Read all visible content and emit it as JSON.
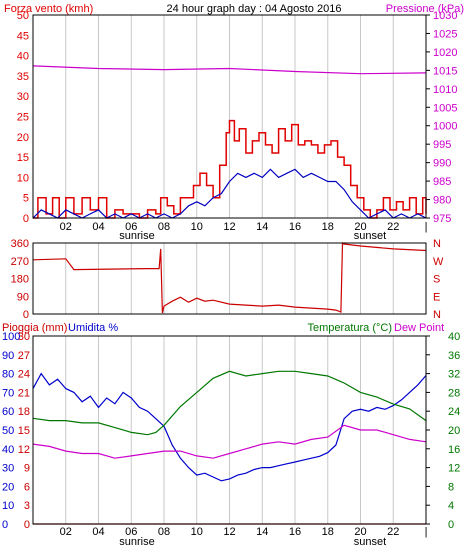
{
  "colors": {
    "wind": "#e00000",
    "wind_max": "#e00000",
    "wind_avg": "#0000c0",
    "pressure": "#cc00cc",
    "direction": "#cc0000",
    "rain": "#cc0000",
    "humidity": "#0000cc",
    "temperature": "#007700",
    "dewpoint": "#cc00cc",
    "grid": "#c8c8c8",
    "frame": "#000000"
  },
  "top": {
    "left_title": "Forza vento (kmh)",
    "center_title": "24 hour graph day : 04 Agosto 2016",
    "right_title": "Pressione (kPa)"
  },
  "bottom": {
    "left_title_a": "Pioggia (mm)",
    "left_title_b": "Umidita %",
    "right_title_a": "Temperatura (°C)",
    "right_title_b": "Dew Point"
  },
  "direction_labels": [
    "N",
    "W",
    "S",
    "E",
    "N"
  ],
  "x_ticks": [
    "02",
    "04",
    "06",
    "08",
    "10",
    "12",
    "14",
    "16",
    "18",
    "20",
    "22",
    "|"
  ],
  "sunrise_label": "sunrise",
  "sunset_label": "sunset",
  "chart_data": [
    {
      "type": "line",
      "name": "wind-pressure",
      "x_range_hours": [
        0,
        24
      ],
      "ylim_left": [
        0,
        50
      ],
      "yticks_left": [
        0,
        5,
        10,
        15,
        20,
        25,
        30,
        35,
        40,
        45,
        50
      ],
      "ylim_right": [
        975,
        1030
      ],
      "yticks_right": [
        975,
        980,
        985,
        990,
        995,
        1000,
        1005,
        1010,
        1015,
        1020,
        1025,
        1030
      ],
      "series": [
        {
          "key": "gust",
          "axis": "left",
          "points": [
            [
              0,
              0
            ],
            [
              0.3,
              5
            ],
            [
              0.8,
              1
            ],
            [
              1.2,
              5
            ],
            [
              1.6,
              0
            ],
            [
              2,
              5
            ],
            [
              2.5,
              1
            ],
            [
              3,
              5
            ],
            [
              3.5,
              2
            ],
            [
              4,
              5
            ],
            [
              4.5,
              0
            ],
            [
              5,
              2
            ],
            [
              5.5,
              1
            ],
            [
              6,
              1
            ],
            [
              6.5,
              0
            ],
            [
              7,
              2
            ],
            [
              7.5,
              1
            ],
            [
              7.8,
              5
            ],
            [
              8.2,
              3
            ],
            [
              8.6,
              1
            ],
            [
              9,
              5
            ],
            [
              9.4,
              5
            ],
            [
              9.8,
              8
            ],
            [
              10.2,
              11
            ],
            [
              10.6,
              8
            ],
            [
              11,
              5
            ],
            [
              11.4,
              13
            ],
            [
              11.8,
              21
            ],
            [
              12,
              24
            ],
            [
              12.3,
              19
            ],
            [
              12.6,
              22
            ],
            [
              13,
              16
            ],
            [
              13.4,
              19
            ],
            [
              13.8,
              21
            ],
            [
              14.2,
              18
            ],
            [
              14.6,
              16
            ],
            [
              15,
              22
            ],
            [
              15.4,
              19
            ],
            [
              15.8,
              23
            ],
            [
              16.2,
              18
            ],
            [
              16.6,
              19
            ],
            [
              17,
              18
            ],
            [
              17.4,
              16
            ],
            [
              17.8,
              18
            ],
            [
              18.2,
              19
            ],
            [
              18.6,
              15
            ],
            [
              19,
              13
            ],
            [
              19.4,
              8
            ],
            [
              19.8,
              5
            ],
            [
              20.2,
              2
            ],
            [
              20.6,
              0
            ],
            [
              21,
              2
            ],
            [
              21.4,
              5
            ],
            [
              21.8,
              2
            ],
            [
              22.2,
              4
            ],
            [
              22.6,
              2
            ],
            [
              23,
              5
            ],
            [
              23.4,
              1
            ],
            [
              23.8,
              5
            ],
            [
              24,
              1
            ]
          ]
        },
        {
          "key": "average",
          "axis": "left",
          "points": [
            [
              0,
              0
            ],
            [
              0.5,
              2
            ],
            [
              1,
              1
            ],
            [
              1.5,
              0
            ],
            [
              2,
              2
            ],
            [
              2.5,
              1
            ],
            [
              3,
              0
            ],
            [
              3.5,
              1
            ],
            [
              4,
              2
            ],
            [
              4.5,
              0
            ],
            [
              5,
              1
            ],
            [
              5.5,
              0
            ],
            [
              6,
              1
            ],
            [
              6.5,
              0
            ],
            [
              7,
              1
            ],
            [
              7.5,
              0
            ],
            [
              8,
              1
            ],
            [
              8.5,
              0
            ],
            [
              9,
              1
            ],
            [
              9.5,
              3
            ],
            [
              10,
              4
            ],
            [
              10.5,
              3
            ],
            [
              11,
              5
            ],
            [
              11.5,
              6
            ],
            [
              12,
              9
            ],
            [
              12.5,
              11
            ],
            [
              13,
              10
            ],
            [
              13.5,
              11
            ],
            [
              14,
              10
            ],
            [
              14.5,
              12
            ],
            [
              15,
              10
            ],
            [
              15.5,
              11
            ],
            [
              16,
              12
            ],
            [
              16.5,
              10
            ],
            [
              17,
              11
            ],
            [
              17.5,
              10
            ],
            [
              18,
              9
            ],
            [
              18.5,
              9
            ],
            [
              19,
              7
            ],
            [
              19.5,
              4
            ],
            [
              20,
              2
            ],
            [
              20.5,
              0
            ],
            [
              21,
              1
            ],
            [
              21.5,
              2
            ],
            [
              22,
              0
            ],
            [
              22.5,
              1
            ],
            [
              23,
              0
            ],
            [
              23.5,
              1
            ],
            [
              24,
              0
            ]
          ]
        },
        {
          "key": "pressure",
          "axis": "right",
          "points": [
            [
              0,
              1016.2
            ],
            [
              4,
              1015.5
            ],
            [
              8,
              1015.2
            ],
            [
              12,
              1015.5
            ],
            [
              16,
              1014.7
            ],
            [
              20,
              1014.1
            ],
            [
              24,
              1014.3
            ]
          ]
        }
      ]
    },
    {
      "type": "line",
      "name": "wind-direction",
      "x_range_hours": [
        0,
        24
      ],
      "ylim": [
        0,
        360
      ],
      "yticks": [
        0,
        90,
        180,
        270,
        360
      ],
      "series": [
        {
          "key": "direction",
          "points": [
            [
              0,
              275
            ],
            [
              2,
              280
            ],
            [
              2.5,
              225
            ],
            [
              7,
              230
            ],
            [
              7.7,
              230
            ],
            [
              7.8,
              330
            ],
            [
              7.9,
              5
            ],
            [
              8,
              40
            ],
            [
              8.5,
              65
            ],
            [
              9,
              85
            ],
            [
              9.5,
              60
            ],
            [
              10,
              80
            ],
            [
              10.5,
              65
            ],
            [
              11,
              70
            ],
            [
              12,
              50
            ],
            [
              13,
              45
            ],
            [
              14,
              40
            ],
            [
              15,
              45
            ],
            [
              16,
              35
            ],
            [
              17,
              30
            ],
            [
              18,
              25
            ],
            [
              18.5,
              20
            ],
            [
              18.8,
              10
            ],
            [
              18.9,
              360
            ],
            [
              19,
              355
            ],
            [
              20,
              345
            ],
            [
              22,
              330
            ],
            [
              24,
              322
            ]
          ]
        }
      ]
    },
    {
      "type": "line",
      "name": "rain-humidity-temperature",
      "x_range_hours": [
        0,
        24
      ],
      "ylim_left_rain": [
        0,
        30
      ],
      "yticks_left_rain": [
        0,
        3,
        6,
        9,
        12,
        15,
        18,
        21,
        24,
        27,
        30
      ],
      "ylim_left_humidity": [
        0,
        100
      ],
      "yticks_left_humidity": [
        0,
        10,
        20,
        30,
        40,
        50,
        60,
        70,
        80,
        90,
        100
      ],
      "ylim_right": [
        0,
        40
      ],
      "yticks_right": [
        0,
        4,
        8,
        12,
        16,
        20,
        24,
        28,
        32,
        36,
        40
      ],
      "series": [
        {
          "key": "rain",
          "points": [
            [
              0,
              0
            ],
            [
              24,
              0
            ]
          ]
        },
        {
          "key": "humidity",
          "points": [
            [
              0,
              72
            ],
            [
              0.5,
              80
            ],
            [
              1,
              74
            ],
            [
              1.5,
              77
            ],
            [
              2,
              72
            ],
            [
              2.5,
              70
            ],
            [
              3,
              65
            ],
            [
              3.5,
              68
            ],
            [
              4,
              62
            ],
            [
              4.5,
              67
            ],
            [
              5,
              64
            ],
            [
              5.5,
              70
            ],
            [
              6,
              67
            ],
            [
              6.5,
              62
            ],
            [
              7,
              60
            ],
            [
              7.5,
              56
            ],
            [
              8,
              52
            ],
            [
              8.5,
              42
            ],
            [
              9,
              35
            ],
            [
              9.5,
              30
            ],
            [
              10,
              26
            ],
            [
              10.5,
              27
            ],
            [
              11,
              25
            ],
            [
              11.5,
              23
            ],
            [
              12,
              24
            ],
            [
              12.5,
              26
            ],
            [
              13,
              27
            ],
            [
              13.5,
              29
            ],
            [
              14,
              30
            ],
            [
              14.5,
              30
            ],
            [
              15,
              31
            ],
            [
              15.5,
              32
            ],
            [
              16,
              33
            ],
            [
              16.5,
              34
            ],
            [
              17,
              35
            ],
            [
              17.5,
              36
            ],
            [
              18,
              38
            ],
            [
              18.5,
              42
            ],
            [
              19,
              56
            ],
            [
              19.5,
              60
            ],
            [
              20,
              61
            ],
            [
              20.5,
              60
            ],
            [
              21,
              62
            ],
            [
              21.5,
              61
            ],
            [
              22,
              63
            ],
            [
              22.5,
              66
            ],
            [
              23,
              70
            ],
            [
              23.5,
              74
            ],
            [
              24,
              79
            ]
          ]
        },
        {
          "key": "temperature",
          "points": [
            [
              0,
              22.5
            ],
            [
              1,
              22
            ],
            [
              2,
              22
            ],
            [
              3,
              21.5
            ],
            [
              4,
              21.5
            ],
            [
              5,
              20.5
            ],
            [
              6,
              19.5
            ],
            [
              7,
              19
            ],
            [
              7.5,
              19.5
            ],
            [
              8,
              21
            ],
            [
              9,
              25
            ],
            [
              10,
              28
            ],
            [
              11,
              31
            ],
            [
              12,
              32.5
            ],
            [
              13,
              31.5
            ],
            [
              14,
              32
            ],
            [
              15,
              32.5
            ],
            [
              16,
              32.5
            ],
            [
              17,
              32
            ],
            [
              18,
              31.5
            ],
            [
              19,
              30
            ],
            [
              20,
              28
            ],
            [
              21,
              27
            ],
            [
              22,
              25.5
            ],
            [
              23,
              24.5
            ],
            [
              24,
              22
            ]
          ]
        },
        {
          "key": "dewpoint",
          "points": [
            [
              0,
              17
            ],
            [
              1,
              16.5
            ],
            [
              2,
              15.5
            ],
            [
              3,
              15
            ],
            [
              4,
              15
            ],
            [
              5,
              14
            ],
            [
              6,
              14.5
            ],
            [
              7,
              15
            ],
            [
              8,
              15.5
            ],
            [
              9,
              15.5
            ],
            [
              10,
              14.5
            ],
            [
              11,
              14
            ],
            [
              12,
              15
            ],
            [
              13,
              16
            ],
            [
              14,
              17
            ],
            [
              15,
              17.5
            ],
            [
              16,
              17
            ],
            [
              17,
              18
            ],
            [
              18,
              18.5
            ],
            [
              19,
              21
            ],
            [
              20,
              20
            ],
            [
              21,
              20
            ],
            [
              22,
              19
            ],
            [
              23,
              18
            ],
            [
              24,
              17.5
            ]
          ]
        }
      ]
    }
  ]
}
